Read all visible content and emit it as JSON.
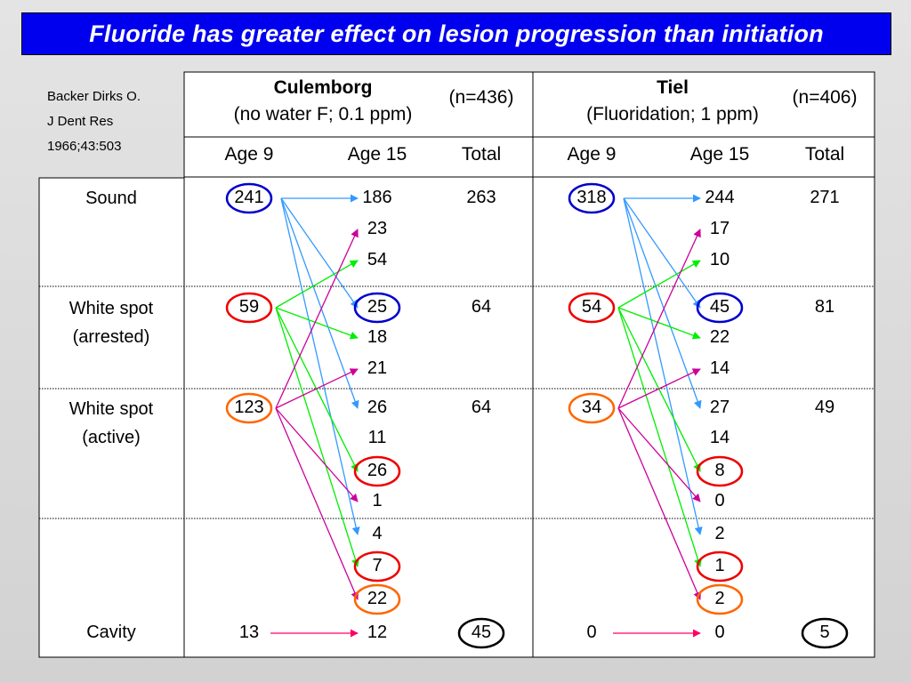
{
  "title": "Fluoride has greater effect on lesion progression than initiation",
  "citation": [
    "Backer Dirks O.",
    "J Dent Res",
    "1966;43:503"
  ],
  "rows": [
    {
      "label": [
        "Sound"
      ]
    },
    {
      "label": [
        "White spot",
        "(arrested)"
      ]
    },
    {
      "label": [
        "White spot",
        "(active)"
      ]
    },
    {
      "label": [
        "Cavity"
      ]
    }
  ],
  "groups": [
    {
      "name": "Culemborg",
      "subtitle": "(no water F; 0.1 ppm)",
      "n": "(n=436)",
      "col_headers": [
        "Age 9",
        "Age 15",
        "Total"
      ],
      "age9": [
        "241",
        "59",
        "123",
        "13"
      ],
      "age15": [
        "186",
        "23",
        "54",
        "25",
        "18",
        "21",
        "26",
        "11",
        "26",
        "1",
        "4",
        "7",
        "22",
        "12"
      ],
      "totals": [
        "263",
        "64",
        "64",
        "45"
      ]
    },
    {
      "name": "Tiel",
      "subtitle": "(Fluoridation; 1 ppm)",
      "n": "(n=406)",
      "col_headers": [
        "Age 9",
        "Age 15",
        "Total"
      ],
      "age9": [
        "318",
        "54",
        "34",
        "0"
      ],
      "age15": [
        "244",
        "17",
        "10",
        "45",
        "22",
        "14",
        "27",
        "14",
        "8",
        "0",
        "2",
        "1",
        "2",
        "0"
      ],
      "totals": [
        "271",
        "81",
        "49",
        "5"
      ]
    }
  ],
  "colors": {
    "title_bg": "#0000ee",
    "sound_arrows": "#3399ff",
    "arrested_arrows": "#00ee00",
    "active_arrows": "#cc0099",
    "cavity_arrows": "#ff0066",
    "circle_blue": "#0000cc",
    "circle_red": "#ee0000",
    "circle_orange": "#ff6600",
    "circle_black": "#000000"
  }
}
